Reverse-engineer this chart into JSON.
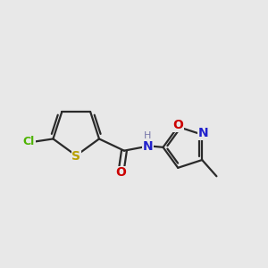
{
  "background_color": "#e8e8e8",
  "bond_color": "#2a2a2a",
  "bond_width": 1.6,
  "atoms": {
    "S": {
      "color": "#b8a000",
      "fontsize": 10,
      "fontweight": "bold"
    },
    "Cl": {
      "color": "#4db300",
      "fontsize": 9,
      "fontweight": "bold"
    },
    "O": {
      "color": "#cc0000",
      "fontsize": 10,
      "fontweight": "bold"
    },
    "N": {
      "color": "#2222cc",
      "fontsize": 10,
      "fontweight": "bold"
    },
    "H": {
      "color": "#7777aa",
      "fontsize": 8,
      "fontweight": "normal"
    }
  },
  "figsize": [
    3.0,
    3.0
  ],
  "dpi": 100,
  "xlim": [
    0,
    10
  ],
  "ylim": [
    0,
    10
  ]
}
